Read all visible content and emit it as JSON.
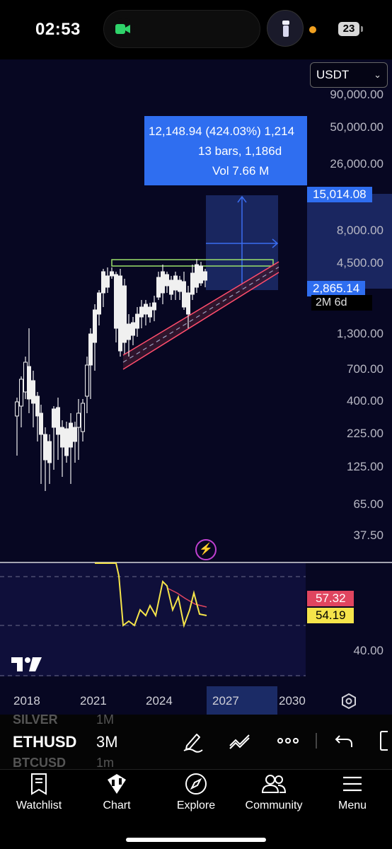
{
  "status_bar": {
    "time": "02:53",
    "battery": "23",
    "icons": [
      "video-camera-icon",
      "flashlight-icon",
      "recording-dot-icon",
      "battery-icon"
    ]
  },
  "chart": {
    "currency": "USDT",
    "price_labels": [
      "90,000.00",
      "50,000.00",
      "26,000.00",
      "8,000.00",
      "4,500.00",
      "1,300.00",
      "700.00",
      "400.00",
      "225.00",
      "125.00",
      "65.00",
      "37.50"
    ],
    "target_price": "15,014.08",
    "current_price": "2,865.14",
    "time_to_close": "2M 6d",
    "measure": {
      "line1": "12,148.94 (424.03%) 1,214",
      "line2": "13 bars, 1,186d",
      "line3": "Vol 7.66 M"
    },
    "indicator": {
      "value_red": "57.32",
      "value_yellow": "54.19",
      "axis_label": "40.00",
      "colors": {
        "main": "#f5e44a",
        "signal": "#e0455f"
      }
    },
    "x_axis": [
      "2018",
      "2021",
      "2024",
      "2027",
      "2030"
    ],
    "colors": {
      "accent": "#2f6ef0",
      "channel": "#ff4d6d",
      "resistance": "#9be06a",
      "background": "#070722"
    }
  },
  "chart_data": {
    "type": "candlestick",
    "symbol": "ETHUSD",
    "interval": "3M",
    "scale": "log",
    "target": 15014.08,
    "last": 2865.14,
    "measure_change": 12148.94,
    "measure_percent": 424.03,
    "measure_bars": 13,
    "measure_days": 1186,
    "indicator_values": [
      57.32,
      54.19
    ]
  },
  "toolbar": {
    "symbol": "ETHUSD",
    "interval": "3M",
    "faint_above": {
      "symbol": "SILVER",
      "interval": "1M"
    },
    "faint_below": {
      "symbol": "BTCUSD",
      "interval": "1m"
    }
  },
  "tabs": [
    {
      "label": "Watchlist",
      "icon": "watchlist-icon"
    },
    {
      "label": "Chart",
      "icon": "chart-icon"
    },
    {
      "label": "Explore",
      "icon": "compass-icon"
    },
    {
      "label": "Community",
      "icon": "community-icon"
    },
    {
      "label": "Menu",
      "icon": "menu-icon"
    }
  ]
}
